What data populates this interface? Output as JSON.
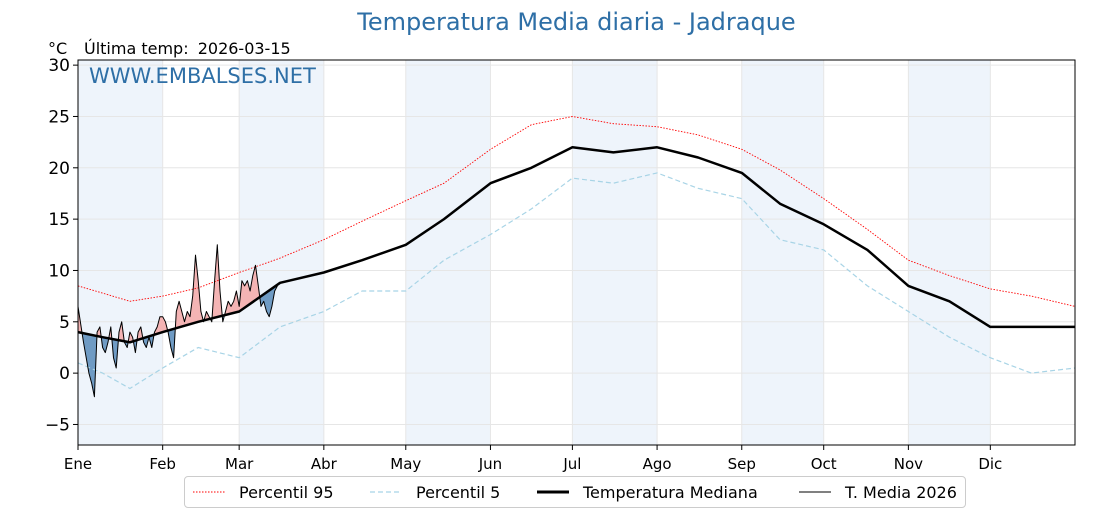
{
  "title": "Temperatura Media diaria - Jadraque",
  "unit": "°C",
  "last_temp": {
    "label": "Última temp:",
    "date": "2026-03-15"
  },
  "watermark": "WWW.EMBALSES.NET",
  "colors": {
    "title": "#2e6fa6",
    "p95": "#ff0000",
    "p5": "#a8d4e6",
    "median": "#000000",
    "current": "#000000",
    "above_fill": "#f4b4b4",
    "below_fill": "#6f9bc4",
    "band": "#eef4fb"
  },
  "legend": [
    {
      "key": "p95",
      "label": "Percentil 95"
    },
    {
      "key": "p5",
      "label": "Percentil 5"
    },
    {
      "key": "median",
      "label": "Temperatura Mediana"
    },
    {
      "key": "current",
      "label": "T. Media 2026"
    }
  ],
  "chart_data": {
    "type": "line",
    "title": "Temperatura Media diaria - Jadraque",
    "ylabel": "°C",
    "ylim": [
      -7,
      30.5
    ],
    "xlim": [
      1,
      366
    ],
    "yticks": [
      -5,
      0,
      5,
      10,
      15,
      20,
      25,
      30
    ],
    "xticks": [
      {
        "day": 1,
        "label": "Ene"
      },
      {
        "day": 32,
        "label": "Feb"
      },
      {
        "day": 60,
        "label": "Mar"
      },
      {
        "day": 91,
        "label": "Abr"
      },
      {
        "day": 121,
        "label": "May"
      },
      {
        "day": 152,
        "label": "Jun"
      },
      {
        "day": 182,
        "label": "Jul"
      },
      {
        "day": 213,
        "label": "Ago"
      },
      {
        "day": 244,
        "label": "Sep"
      },
      {
        "day": 274,
        "label": "Oct"
      },
      {
        "day": 305,
        "label": "Nov"
      },
      {
        "day": 335,
        "label": "Dic"
      }
    ],
    "shaded_months": [
      "Ene",
      "Mar",
      "May",
      "Jul",
      "Sep",
      "Nov"
    ],
    "grid": true,
    "legend_position": "bottom-center",
    "series": [
      {
        "name": "Percentil 95",
        "key": "p95",
        "style": "dotted",
        "x": [
          1,
          10,
          20,
          32,
          45,
          60,
          75,
          91,
          105,
          121,
          135,
          152,
          167,
          182,
          197,
          213,
          228,
          244,
          258,
          274,
          290,
          305,
          320,
          335,
          350,
          366
        ],
        "y": [
          8.5,
          7.8,
          7.0,
          7.5,
          8.3,
          9.8,
          11.2,
          13.0,
          14.8,
          16.8,
          18.5,
          21.8,
          24.2,
          25.0,
          24.3,
          24.0,
          23.2,
          21.8,
          19.8,
          17.0,
          14.0,
          11.0,
          9.5,
          8.2,
          7.5,
          6.5
        ]
      },
      {
        "name": "Percentil 5",
        "key": "p5",
        "style": "dashed",
        "x": [
          1,
          10,
          20,
          32,
          45,
          60,
          75,
          91,
          105,
          121,
          135,
          152,
          167,
          182,
          197,
          213,
          228,
          244,
          258,
          274,
          290,
          305,
          320,
          335,
          350,
          366
        ],
        "y": [
          1.0,
          0.0,
          -1.5,
          0.5,
          2.5,
          1.5,
          4.5,
          6.0,
          8.0,
          8.0,
          11.0,
          13.5,
          16.0,
          19.0,
          18.5,
          19.5,
          18.0,
          17.0,
          13.0,
          12.0,
          8.5,
          6.0,
          3.5,
          1.5,
          0.0,
          0.5
        ]
      },
      {
        "name": "Temperatura Mediana",
        "key": "median",
        "style": "bold",
        "x": [
          1,
          10,
          20,
          32,
          45,
          60,
          75,
          91,
          105,
          121,
          135,
          152,
          167,
          182,
          197,
          213,
          228,
          244,
          258,
          274,
          290,
          305,
          320,
          335,
          350,
          366
        ],
        "y": [
          4.0,
          3.5,
          3.0,
          4.0,
          5.0,
          6.0,
          8.8,
          9.8,
          11.0,
          12.5,
          15.0,
          18.5,
          20.0,
          22.0,
          21.5,
          22.0,
          21.0,
          19.5,
          16.5,
          14.5,
          12.0,
          8.5,
          7.0,
          4.5,
          4.5,
          4.5
        ]
      },
      {
        "name": "T. Media 2026",
        "key": "current",
        "style": "thin",
        "x": [
          1,
          3,
          5,
          6,
          7,
          8,
          9,
          10,
          11,
          12,
          13,
          14,
          15,
          16,
          17,
          18,
          19,
          20,
          21,
          22,
          23,
          24,
          25,
          26,
          27,
          28,
          29,
          30,
          31,
          32,
          33,
          34,
          35,
          36,
          37,
          38,
          39,
          40,
          41,
          42,
          43,
          44,
          45,
          46,
          47,
          48,
          49,
          50,
          51,
          52,
          53,
          54,
          55,
          56,
          57,
          58,
          59,
          60,
          61,
          62,
          63,
          64,
          65,
          66,
          67,
          68,
          69,
          70,
          71,
          72,
          73,
          74
        ],
        "y": [
          6.5,
          3.0,
          0.0,
          -1.0,
          -2.3,
          4.0,
          4.5,
          2.5,
          2.0,
          3.0,
          4.5,
          1.5,
          0.5,
          4.0,
          5.0,
          3.0,
          2.5,
          4.0,
          3.5,
          2.0,
          4.0,
          4.5,
          3.0,
          2.5,
          3.5,
          2.5,
          4.0,
          4.5,
          5.5,
          5.5,
          5.0,
          4.0,
          2.5,
          1.5,
          6.0,
          7.0,
          6.0,
          5.0,
          6.0,
          5.5,
          7.5,
          11.5,
          9.0,
          6.0,
          5.0,
          6.0,
          5.5,
          5.0,
          9.0,
          12.5,
          8.0,
          5.0,
          6.0,
          7.0,
          6.5,
          7.0,
          8.0,
          6.5,
          9.0,
          8.5,
          9.0,
          8.0,
          9.5,
          10.5,
          8.5,
          6.5,
          7.0,
          6.0,
          5.5,
          6.5,
          8.0,
          8.5
        ]
      }
    ]
  }
}
